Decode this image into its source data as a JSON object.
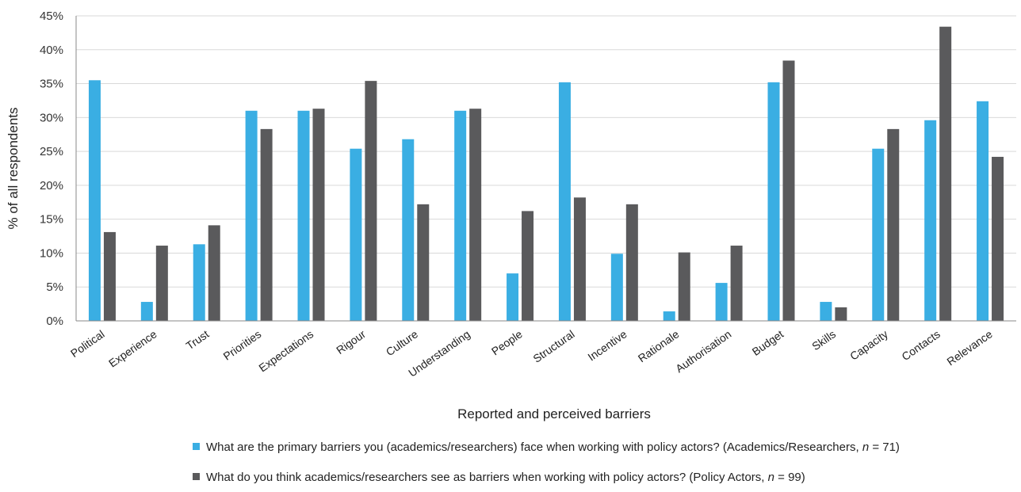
{
  "chart_data": {
    "type": "bar",
    "xlabel": "Reported and perceived barriers",
    "ylabel": "% of all respondents",
    "ylim": [
      0,
      45
    ],
    "yticks": [
      "0%",
      "5%",
      "10%",
      "15%",
      "20%",
      "25%",
      "30%",
      "35%",
      "40%",
      "45%"
    ],
    "categories": [
      "Political",
      "Experience",
      "Trust",
      "Priorities",
      "Expectations",
      "Rigour",
      "Culture",
      "Understanding",
      "People",
      "Structural",
      "Incentive",
      "Rationale",
      "Authorisation",
      "Budget",
      "Skills",
      "Capacity",
      "Contacts",
      "Relevance"
    ],
    "series": [
      {
        "color": "#3aaee3",
        "values": [
          35.5,
          2.8,
          11.3,
          31.0,
          31.0,
          25.4,
          26.8,
          31.0,
          7.0,
          35.2,
          9.9,
          1.4,
          5.6,
          35.2,
          2.8,
          25.4,
          29.6,
          32.4
        ]
      },
      {
        "color": "#5a5a5c",
        "values": [
          13.1,
          11.1,
          14.1,
          28.3,
          31.3,
          35.4,
          17.2,
          31.3,
          16.2,
          18.2,
          17.2,
          10.1,
          11.1,
          38.4,
          2.0,
          28.3,
          43.4,
          24.2
        ]
      }
    ],
    "grid": true,
    "legend_position": "bottom"
  },
  "legend": {
    "items": [
      {
        "text_before": "What are the primary barriers you (academics/researchers) face when working with policy actors? (Academics/Researchers, ",
        "n_symbol": "n",
        "text_after": " = 71)",
        "color": "#3aaee3"
      },
      {
        "text_before": "What do you think academics/researchers see as barriers when working with policy actors? (Policy Actors, ",
        "n_symbol": "n",
        "text_after": " = 99)",
        "color": "#5a5a5c"
      }
    ]
  }
}
